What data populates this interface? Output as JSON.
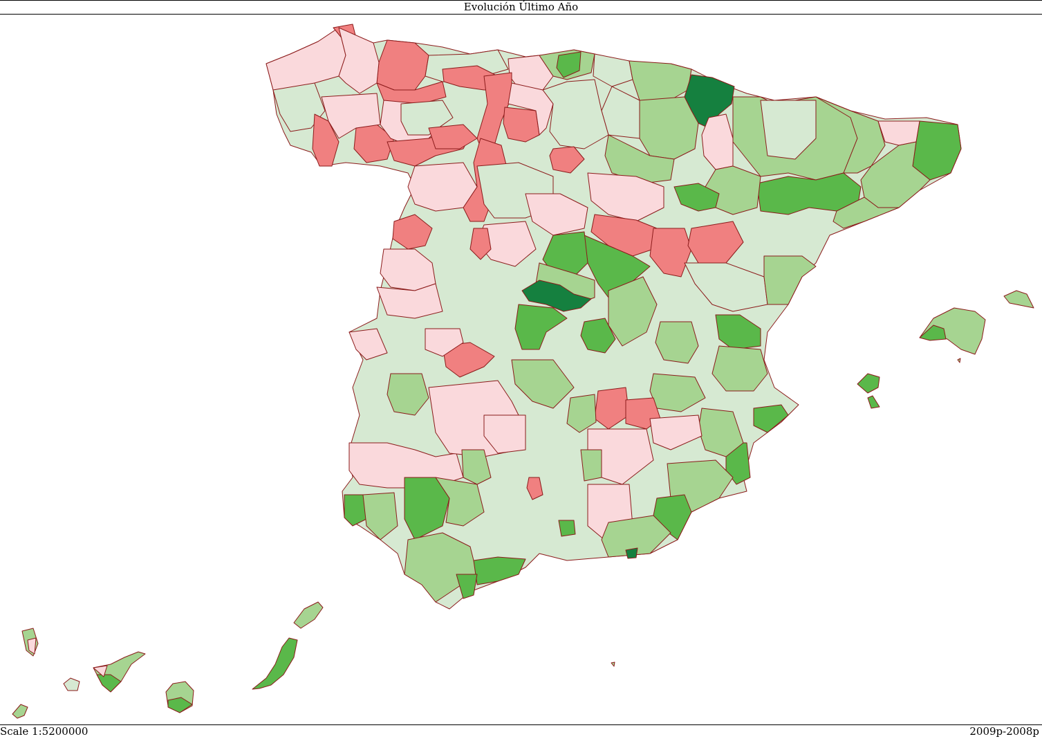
{
  "header": {
    "title": "Evolución Último Año"
  },
  "footer": {
    "scale": "Scale 1:5200000",
    "period": "2009p-2008p"
  },
  "legend_colors": {
    "strong_decrease": "#f08080",
    "mild_decrease": "#fad9dc",
    "neutral": "#d6e9d2",
    "mild_increase": "#a6d491",
    "increase": "#5ab84a",
    "strong_increase": "#15803f",
    "border": "#8b1a1a"
  }
}
